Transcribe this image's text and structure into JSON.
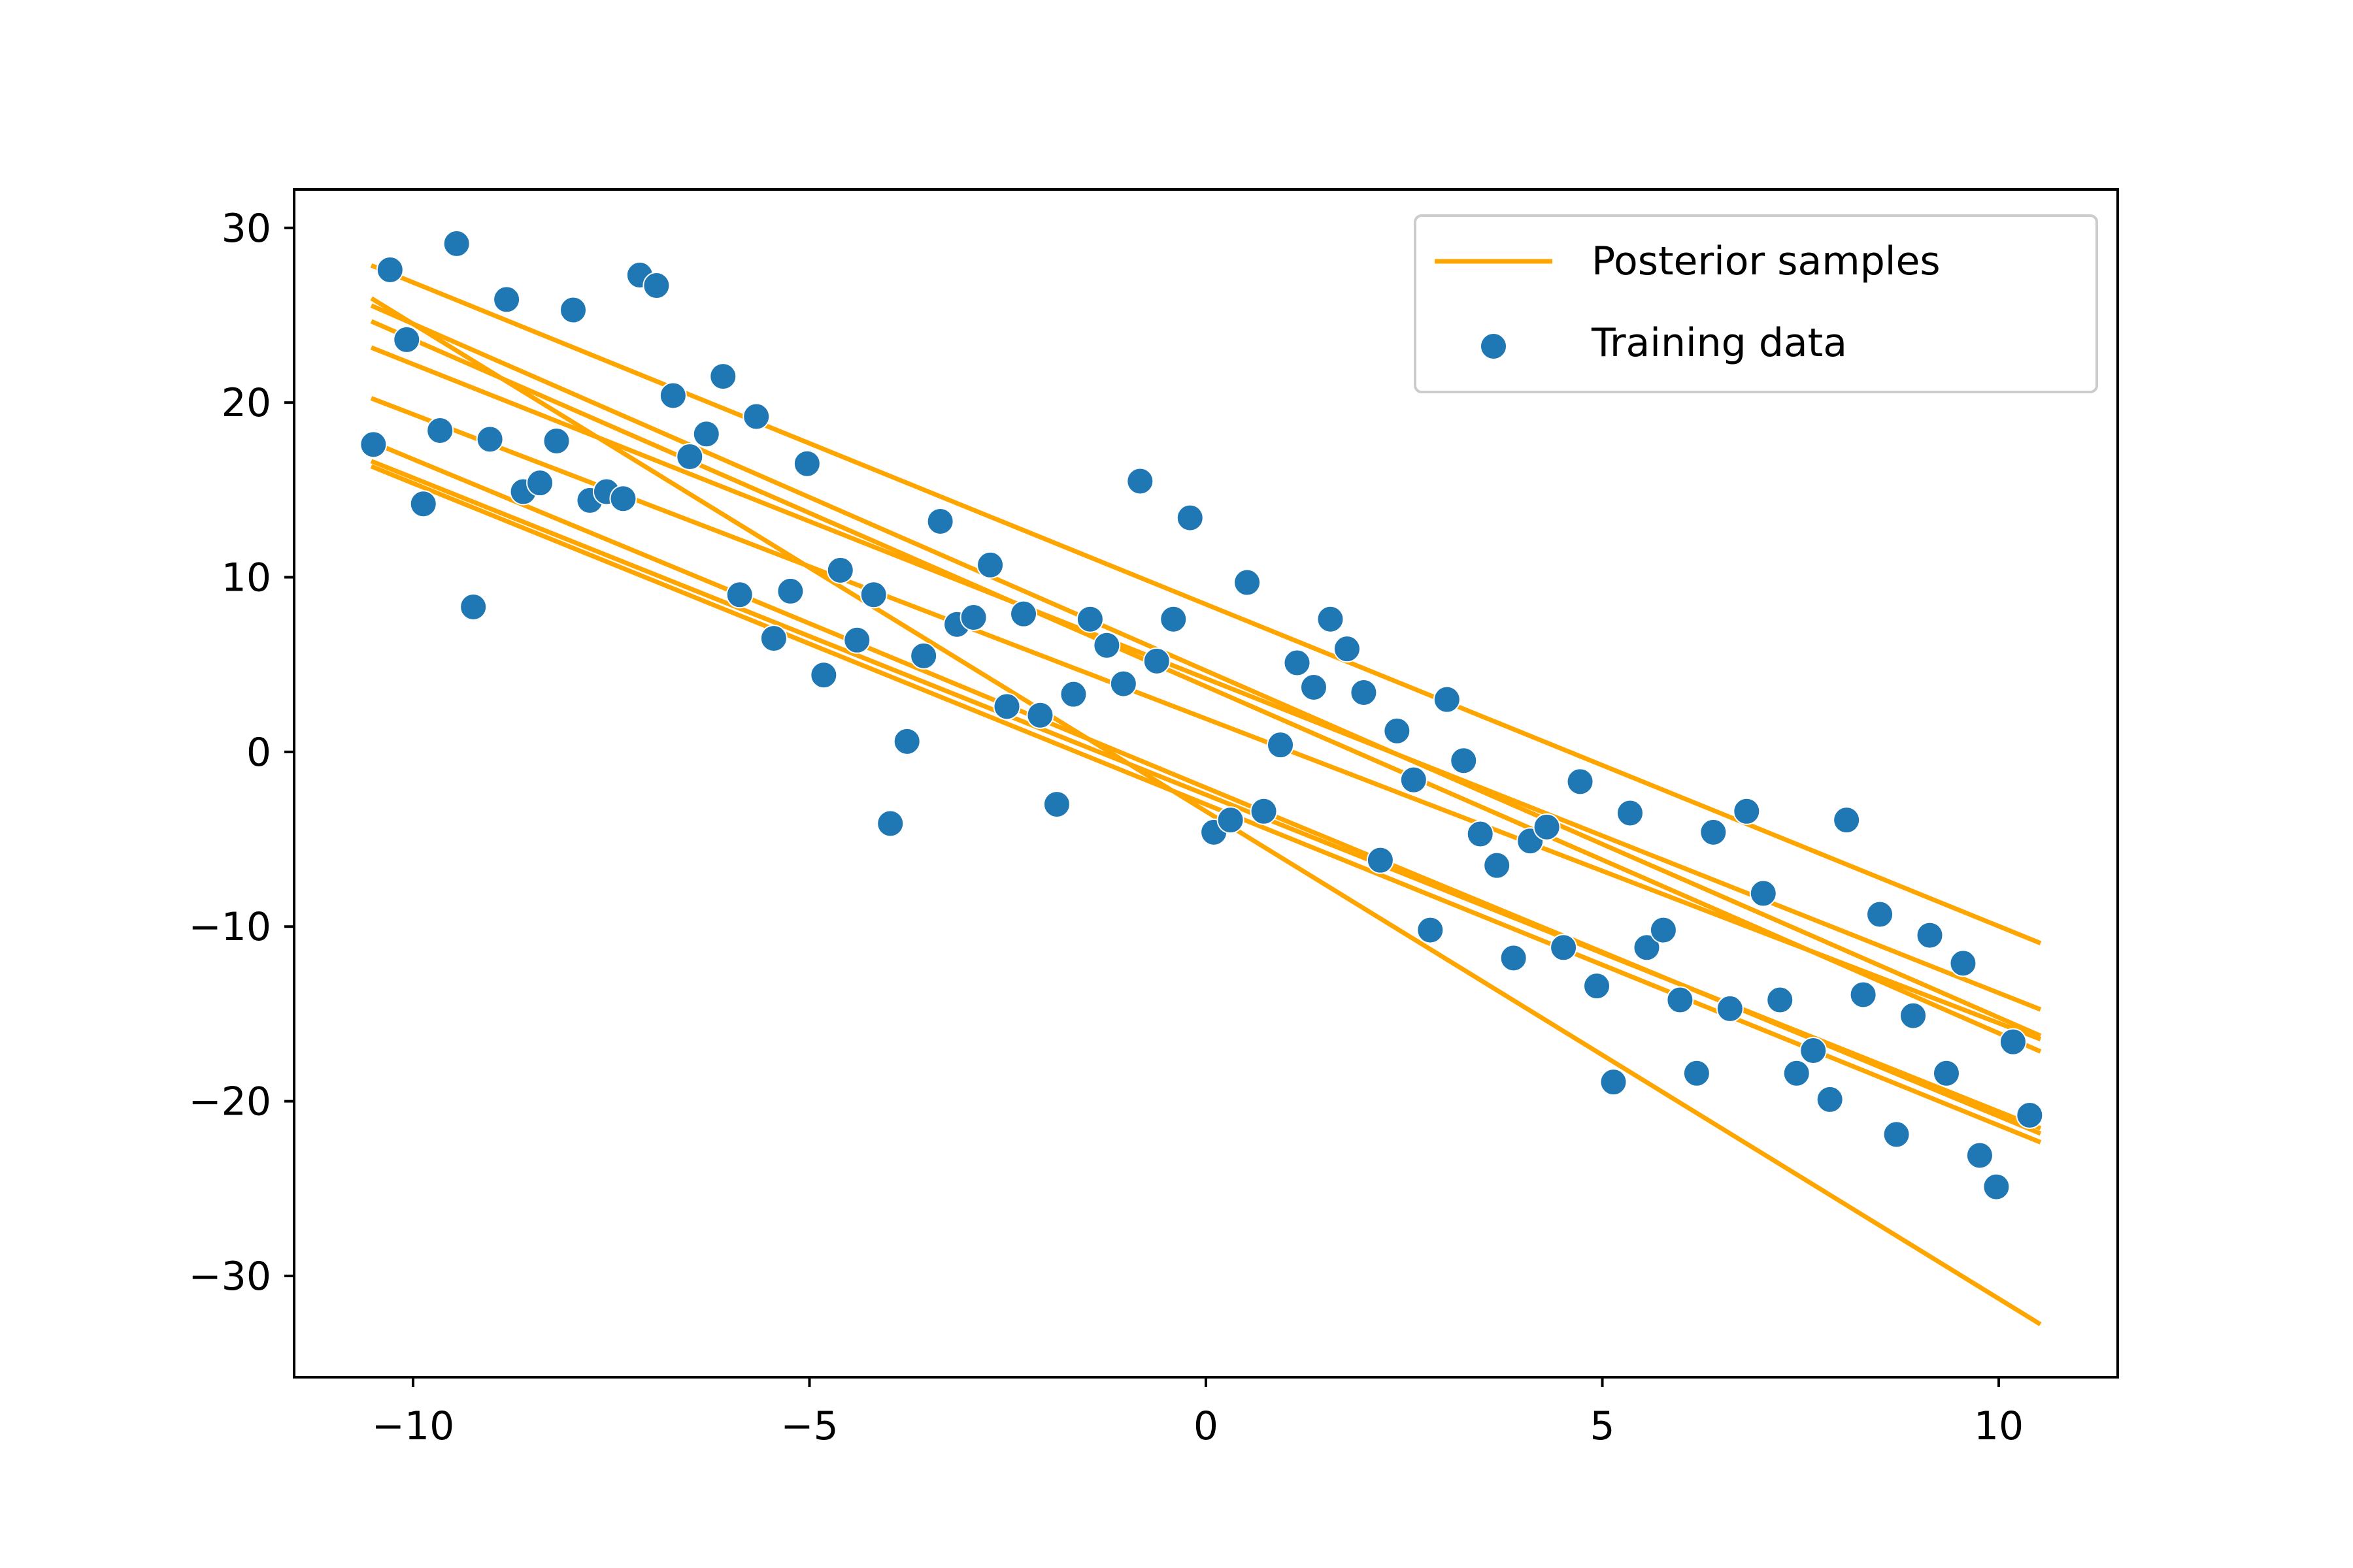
{
  "chart_data": {
    "type": "scatter",
    "title": "",
    "xlabel": "",
    "ylabel": "",
    "xlim": [
      -11.5,
      11.5
    ],
    "ylim": [
      -35.8,
      32.2
    ],
    "x_ticks": [
      -10,
      -5,
      0,
      5,
      10
    ],
    "y_ticks": [
      -30,
      -20,
      -10,
      0,
      10,
      20,
      30
    ],
    "x_tick_labels": [
      "−10",
      "−5",
      "0",
      "5",
      "10"
    ],
    "y_tick_labels": [
      "−30",
      "−20",
      "−10",
      "0",
      "10",
      "20",
      "30"
    ],
    "grid": false,
    "legend_position": "upper right",
    "colors": {
      "lines": "#ffa500",
      "points": "#1f77b4",
      "axes": "#000000",
      "legend_border": "#cccccc"
    },
    "series": [
      {
        "name": "Posterior samples",
        "type": "line",
        "lines": [
          {
            "x": [
              -10.5,
              10.5
            ],
            "y": [
              27.8,
              -10.9
            ]
          },
          {
            "x": [
              -10.5,
              10.5
            ],
            "y": [
              25.9,
              -32.7
            ]
          },
          {
            "x": [
              -10.5,
              10.5
            ],
            "y": [
              25.5,
              -16.2
            ]
          },
          {
            "x": [
              -10.5,
              10.5
            ],
            "y": [
              24.6,
              -17.1
            ]
          },
          {
            "x": [
              -10.5,
              10.5
            ],
            "y": [
              23.1,
              -14.7
            ]
          },
          {
            "x": [
              -10.5,
              10.5
            ],
            "y": [
              20.2,
              -16.4
            ]
          },
          {
            "x": [
              -10.5,
              10.5
            ],
            "y": [
              17.7,
              -21.8
            ]
          },
          {
            "x": [
              -10.5,
              10.5
            ],
            "y": [
              16.6,
              -21.5
            ]
          },
          {
            "x": [
              -10.5,
              10.5
            ],
            "y": [
              16.3,
              -22.3
            ]
          }
        ]
      },
      {
        "name": "Training data",
        "type": "scatter",
        "points": [
          [
            -10.5,
            17.6
          ],
          [
            -10.29,
            27.6
          ],
          [
            -10.08,
            23.6
          ],
          [
            -9.87,
            14.2
          ],
          [
            -9.66,
            18.4
          ],
          [
            -9.45,
            29.1
          ],
          [
            -9.24,
            8.3
          ],
          [
            -9.03,
            17.9
          ],
          [
            -8.82,
            25.9
          ],
          [
            -8.61,
            14.9
          ],
          [
            -8.4,
            15.4
          ],
          [
            -8.19,
            17.8
          ],
          [
            -7.98,
            25.3
          ],
          [
            -7.77,
            14.4
          ],
          [
            -7.56,
            14.9
          ],
          [
            -7.35,
            14.5
          ],
          [
            -7.14,
            27.3
          ],
          [
            -6.93,
            26.7
          ],
          [
            -6.72,
            20.4
          ],
          [
            -6.51,
            16.9
          ],
          [
            -6.3,
            18.2
          ],
          [
            -6.09,
            21.5
          ],
          [
            -5.88,
            9.0
          ],
          [
            -5.67,
            19.2
          ],
          [
            -5.45,
            6.5
          ],
          [
            -5.24,
            9.2
          ],
          [
            -5.03,
            16.5
          ],
          [
            -4.82,
            4.4
          ],
          [
            -4.61,
            10.4
          ],
          [
            -4.4,
            6.4
          ],
          [
            -4.19,
            9.0
          ],
          [
            -3.98,
            -4.1
          ],
          [
            -3.77,
            0.6
          ],
          [
            -3.56,
            5.5
          ],
          [
            -3.35,
            13.2
          ],
          [
            -3.14,
            7.3
          ],
          [
            -2.93,
            7.7
          ],
          [
            -2.72,
            10.7
          ],
          [
            -2.51,
            2.6
          ],
          [
            -2.3,
            7.9
          ],
          [
            -2.09,
            2.1
          ],
          [
            -1.88,
            -3.0
          ],
          [
            -1.67,
            3.3
          ],
          [
            -1.46,
            7.6
          ],
          [
            -1.25,
            6.1
          ],
          [
            -1.04,
            3.9
          ],
          [
            -0.83,
            15.5
          ],
          [
            -0.62,
            5.2
          ],
          [
            -0.41,
            7.6
          ],
          [
            -0.2,
            13.4
          ],
          [
            0.1,
            -4.6
          ],
          [
            0.31,
            -3.9
          ],
          [
            0.52,
            9.7
          ],
          [
            0.73,
            -3.4
          ],
          [
            0.94,
            0.4
          ],
          [
            1.15,
            5.1
          ],
          [
            1.36,
            3.7
          ],
          [
            1.57,
            7.6
          ],
          [
            1.78,
            5.9
          ],
          [
            1.99,
            3.4
          ],
          [
            2.2,
            -6.2
          ],
          [
            2.41,
            1.2
          ],
          [
            2.62,
            -1.6
          ],
          [
            2.83,
            -10.2
          ],
          [
            3.04,
            3.0
          ],
          [
            3.25,
            -0.5
          ],
          [
            3.46,
            -4.7
          ],
          [
            3.67,
            -6.5
          ],
          [
            3.88,
            -11.8
          ],
          [
            4.09,
            -5.1
          ],
          [
            4.3,
            -4.3
          ],
          [
            4.51,
            -11.2
          ],
          [
            4.72,
            -1.7
          ],
          [
            4.93,
            -13.4
          ],
          [
            5.14,
            -18.9
          ],
          [
            5.35,
            -3.5
          ],
          [
            5.56,
            -11.2
          ],
          [
            5.77,
            -10.2
          ],
          [
            5.98,
            -14.2
          ],
          [
            6.19,
            -18.4
          ],
          [
            6.4,
            -4.6
          ],
          [
            6.61,
            -14.7
          ],
          [
            6.82,
            -3.4
          ],
          [
            7.03,
            -8.1
          ],
          [
            7.24,
            -14.2
          ],
          [
            7.45,
            -18.4
          ],
          [
            7.66,
            -17.1
          ],
          [
            7.87,
            -19.9
          ],
          [
            8.08,
            -3.9
          ],
          [
            8.29,
            -13.9
          ],
          [
            8.5,
            -9.3
          ],
          [
            8.71,
            -21.9
          ],
          [
            8.92,
            -15.1
          ],
          [
            9.13,
            -10.5
          ],
          [
            9.34,
            -18.4
          ],
          [
            9.55,
            -12.1
          ],
          [
            9.76,
            -23.1
          ],
          [
            9.97,
            -24.9
          ],
          [
            10.18,
            -16.6
          ],
          [
            10.39,
            -20.8
          ]
        ]
      }
    ]
  }
}
